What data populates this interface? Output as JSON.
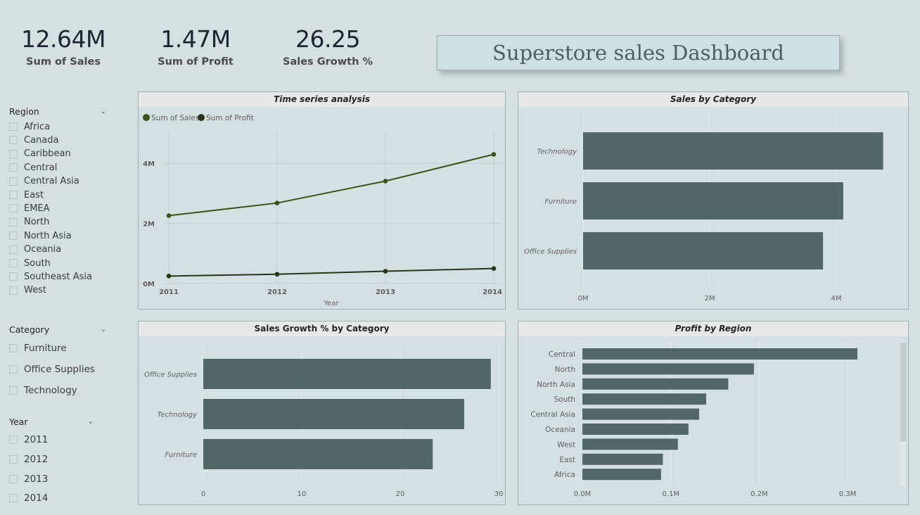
{
  "kpis": [
    {
      "value": "12.64M",
      "label": "Sum of Sales"
    },
    {
      "value": "1.47M",
      "label": "Sum of Profit"
    },
    {
      "value": "26.25",
      "label": "Sales Growth %"
    }
  ],
  "dashboard_title": "Superstore sales Dashboard",
  "slicers": {
    "region": {
      "title": "Region",
      "items": [
        "Africa",
        "Canada",
        "Caribbean",
        "Central",
        "Central Asia",
        "East",
        "EMEA",
        "North",
        "North Asia",
        "Oceania",
        "South",
        "Southeast Asia",
        "West"
      ]
    },
    "category": {
      "title": "Category",
      "items": [
        "Furniture",
        "Office Supplies",
        "Technology"
      ]
    },
    "year": {
      "title": "Year",
      "items": [
        "2011",
        "2012",
        "2013",
        "2014"
      ]
    }
  },
  "colors": {
    "bar": "#536769",
    "line_sales": "#3a5217",
    "line_profit": "#28351a",
    "grid": "#c3cfd0"
  },
  "chart_data": [
    {
      "type": "line",
      "title": "Time series analysis",
      "xlabel": "Year",
      "ylabel": "",
      "x": [
        "2011",
        "2012",
        "2013",
        "2014"
      ],
      "series": [
        {
          "name": "Sum of Sales",
          "values": [
            2.26,
            2.68,
            3.41,
            4.3
          ]
        },
        {
          "name": "Sum of Profit",
          "values": [
            0.25,
            0.31,
            0.41,
            0.5
          ]
        }
      ],
      "y_ticks": [
        "0M",
        "2M",
        "4M"
      ],
      "ylim": [
        0,
        5
      ],
      "legend": "top-left",
      "grid": true
    },
    {
      "type": "bar",
      "orientation": "horizontal",
      "title": "Sales by Category",
      "categories": [
        "Technology",
        "Furniture",
        "Office Supplies"
      ],
      "values": [
        4.74,
        4.11,
        3.79
      ],
      "x_ticks": [
        "0M",
        "2M",
        "4M"
      ],
      "xlim": [
        0,
        5
      ],
      "grid": true
    },
    {
      "type": "bar",
      "orientation": "horizontal",
      "title": "Sales Growth % by Category",
      "categories": [
        "Office Supplies",
        "Technology",
        "Furniture"
      ],
      "values": [
        29.2,
        26.5,
        23.3
      ],
      "x_ticks": [
        "0",
        "10",
        "20",
        "30"
      ],
      "xlim": [
        0,
        30
      ],
      "grid": true
    },
    {
      "type": "bar",
      "orientation": "horizontal",
      "title": "Profit by Region",
      "categories": [
        "Central",
        "North",
        "North Asia",
        "South",
        "Central Asia",
        "Oceania",
        "West",
        "East",
        "Africa"
      ],
      "values": [
        0.311,
        0.194,
        0.165,
        0.14,
        0.132,
        0.12,
        0.108,
        0.091,
        0.089
      ],
      "x_ticks": [
        "0.0M",
        "0.1M",
        "0.2M",
        "0.3M"
      ],
      "xlim": [
        0,
        0.35
      ],
      "grid": true
    }
  ]
}
